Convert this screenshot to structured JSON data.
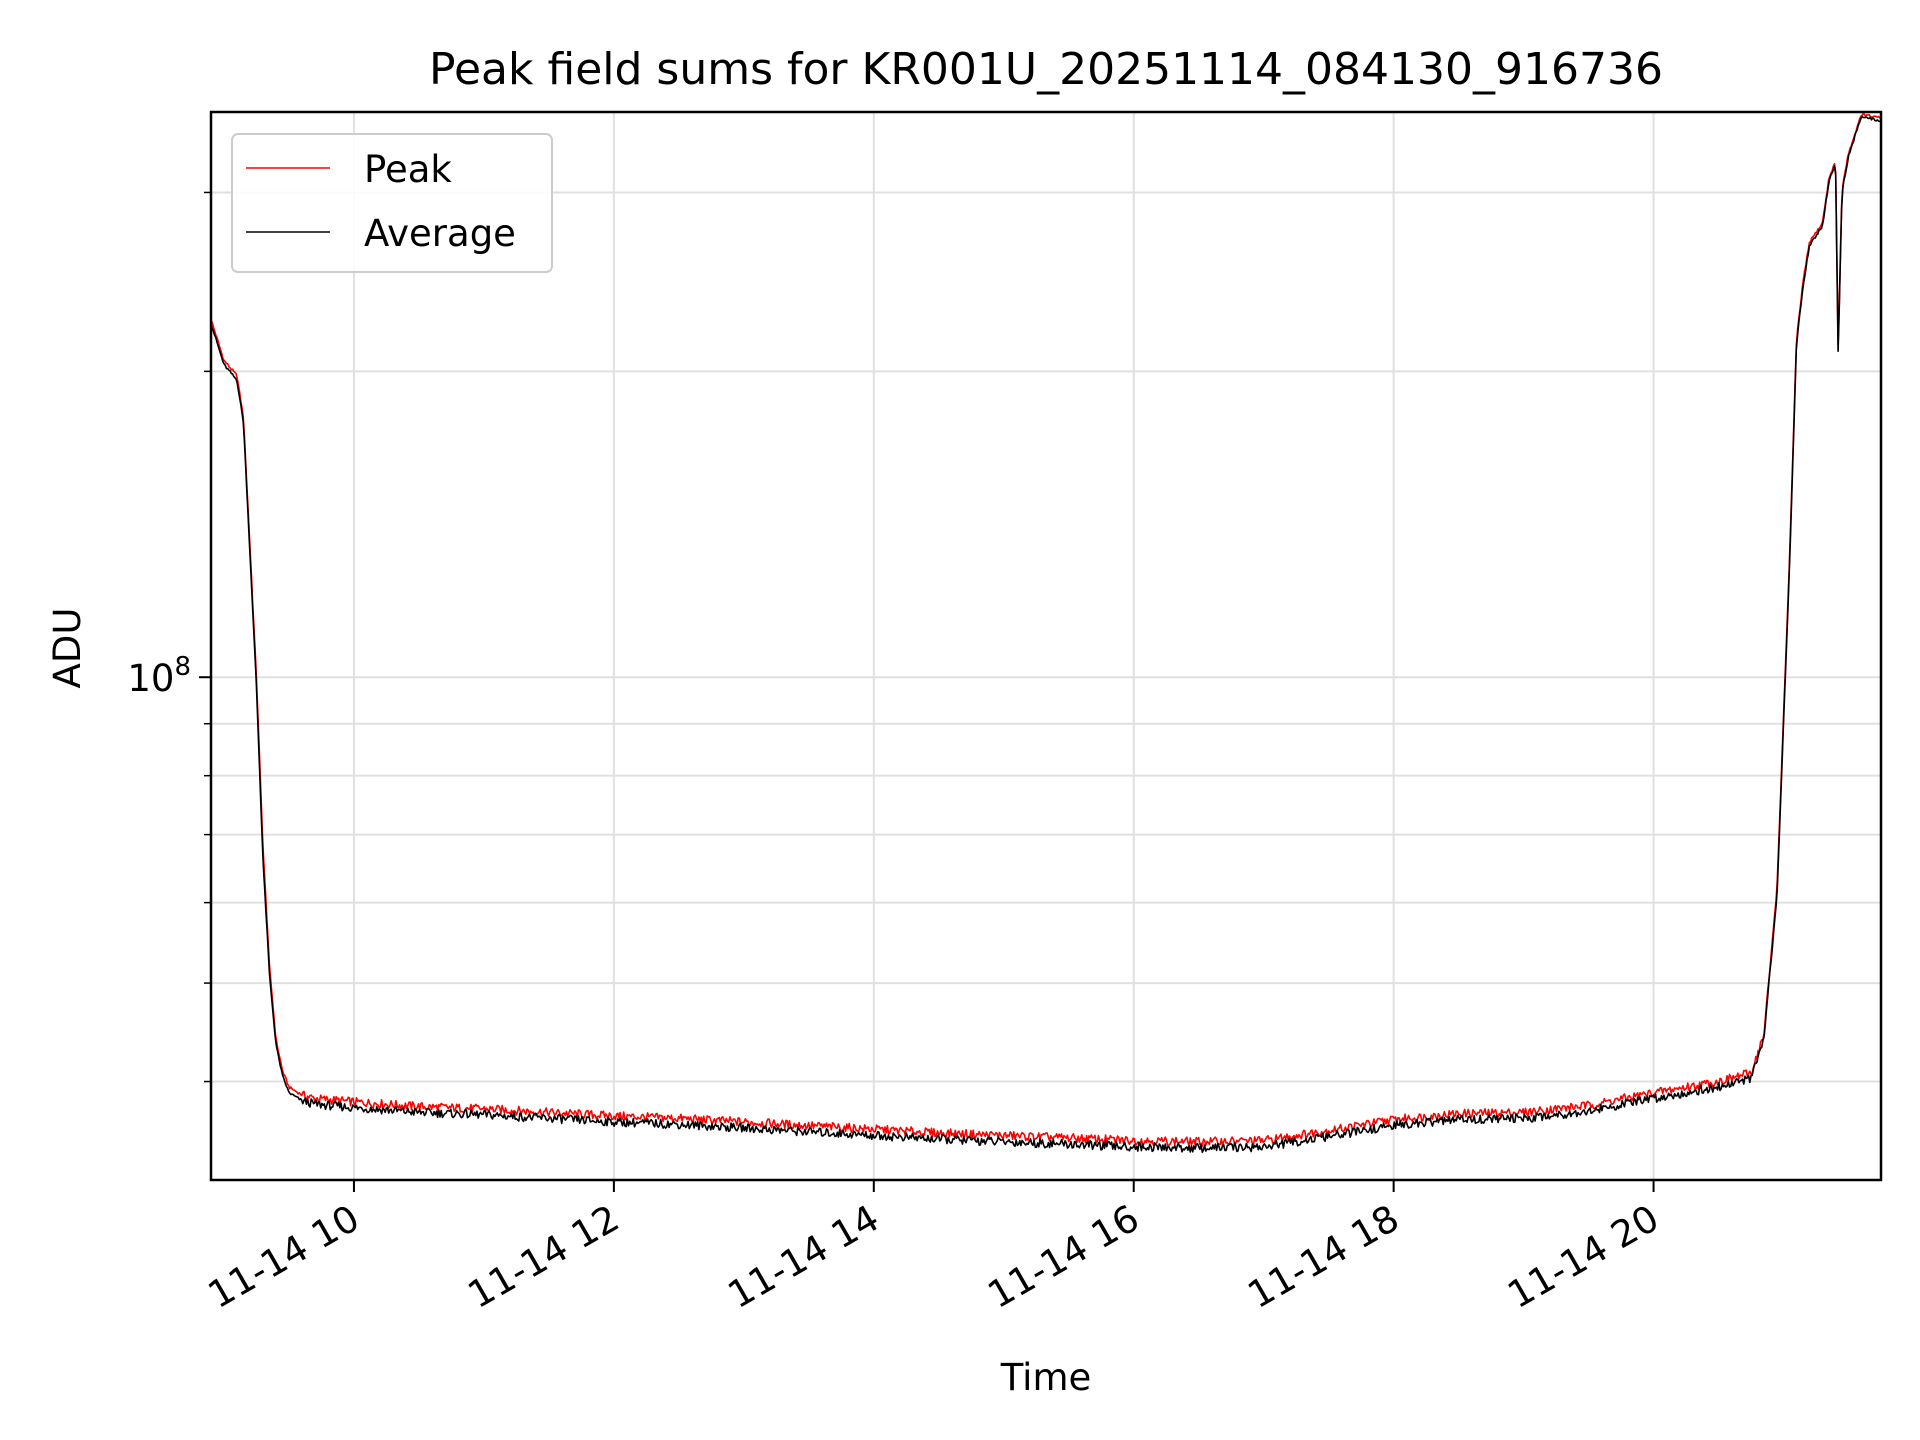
{
  "chart_data": {
    "type": "line",
    "title": "Peak field sums for KR001U_20251114_084130_916736",
    "xlabel": "Time",
    "ylabel": "ADU",
    "y_scale": "log",
    "grid": true,
    "legend_position": "top-left",
    "colors": {
      "peak": "#ff0000",
      "average": "#000000",
      "grid": "#e0e0e0",
      "axis": "#000000"
    },
    "xlim_hours": [
      8.9,
      21.75
    ],
    "ylim": [
      32000000,
      360000000
    ],
    "x_ticks": [
      {
        "hour": 10,
        "label": "11-14 10"
      },
      {
        "hour": 12,
        "label": "11-14 12"
      },
      {
        "hour": 14,
        "label": "11-14 14"
      },
      {
        "hour": 16,
        "label": "11-14 16"
      },
      {
        "hour": 18,
        "label": "11-14 18"
      },
      {
        "hour": 20,
        "label": "11-14 20"
      }
    ],
    "y_major_tick": {
      "value": 100000000,
      "base": "10",
      "exponent": "8"
    },
    "y_minor_ticks": [
      40000000,
      50000000,
      60000000,
      70000000,
      80000000,
      90000000,
      200000000,
      300000000
    ],
    "series": [
      {
        "name": "Peak",
        "color": "#ff0000",
        "x_hours": [
          8.9,
          9.0,
          9.1,
          9.15,
          9.25,
          9.3,
          9.35,
          9.4,
          9.45,
          9.5,
          9.6,
          9.7,
          10.0,
          10.5,
          11.0,
          11.5,
          12.0,
          12.5,
          13.0,
          13.5,
          14.0,
          14.5,
          15.0,
          15.5,
          16.0,
          16.5,
          17.0,
          17.5,
          18.0,
          18.5,
          19.0,
          19.5,
          20.0,
          20.5,
          20.75,
          20.85,
          20.95,
          21.05,
          21.1,
          21.15,
          21.2,
          21.3,
          21.35,
          21.4,
          21.42,
          21.45,
          21.5,
          21.6,
          21.75
        ],
        "values": [
          225000000,
          205000000,
          198000000,
          180000000,
          100000000,
          68000000,
          52000000,
          44000000,
          41000000,
          39500000,
          38800000,
          38500000,
          38200000,
          37800000,
          37600000,
          37300000,
          37000000,
          36800000,
          36500000,
          36200000,
          35900000,
          35600000,
          35400000,
          35200000,
          35000000,
          34900000,
          35000000,
          35800000,
          36700000,
          37200000,
          37300000,
          37900000,
          39000000,
          40000000,
          40800000,
          44500000,
          62000000,
          135000000,
          215000000,
          245000000,
          268000000,
          280000000,
          310000000,
          322000000,
          210000000,
          302000000,
          328000000,
          358000000,
          355000000
        ]
      },
      {
        "name": "Average",
        "color": "#000000",
        "x_hours": [
          8.9,
          9.0,
          9.1,
          9.15,
          9.25,
          9.3,
          9.35,
          9.4,
          9.45,
          9.5,
          9.6,
          9.7,
          10.0,
          10.5,
          11.0,
          11.5,
          12.0,
          12.5,
          13.0,
          13.5,
          14.0,
          14.5,
          15.0,
          15.5,
          16.0,
          16.5,
          17.0,
          17.5,
          18.0,
          18.5,
          19.0,
          19.5,
          20.0,
          20.5,
          20.75,
          20.85,
          20.95,
          21.05,
          21.1,
          21.15,
          21.2,
          21.3,
          21.35,
          21.4,
          21.42,
          21.45,
          21.5,
          21.6,
          21.75
        ],
        "values": [
          223000000,
          203000000,
          196000000,
          178000000,
          98000000,
          66000000,
          51000000,
          43500000,
          40500000,
          39000000,
          38300000,
          38000000,
          37700000,
          37300000,
          37100000,
          36800000,
          36500000,
          36300000,
          36000000,
          35700000,
          35400000,
          35100000,
          34900000,
          34700000,
          34500000,
          34400000,
          34500000,
          35300000,
          36200000,
          36700000,
          36800000,
          37400000,
          38500000,
          39500000,
          40300000,
          44000000,
          61000000,
          133000000,
          213000000,
          243000000,
          266000000,
          278000000,
          308000000,
          320000000,
          208000000,
          300000000,
          326000000,
          356000000,
          353000000
        ]
      }
    ]
  }
}
